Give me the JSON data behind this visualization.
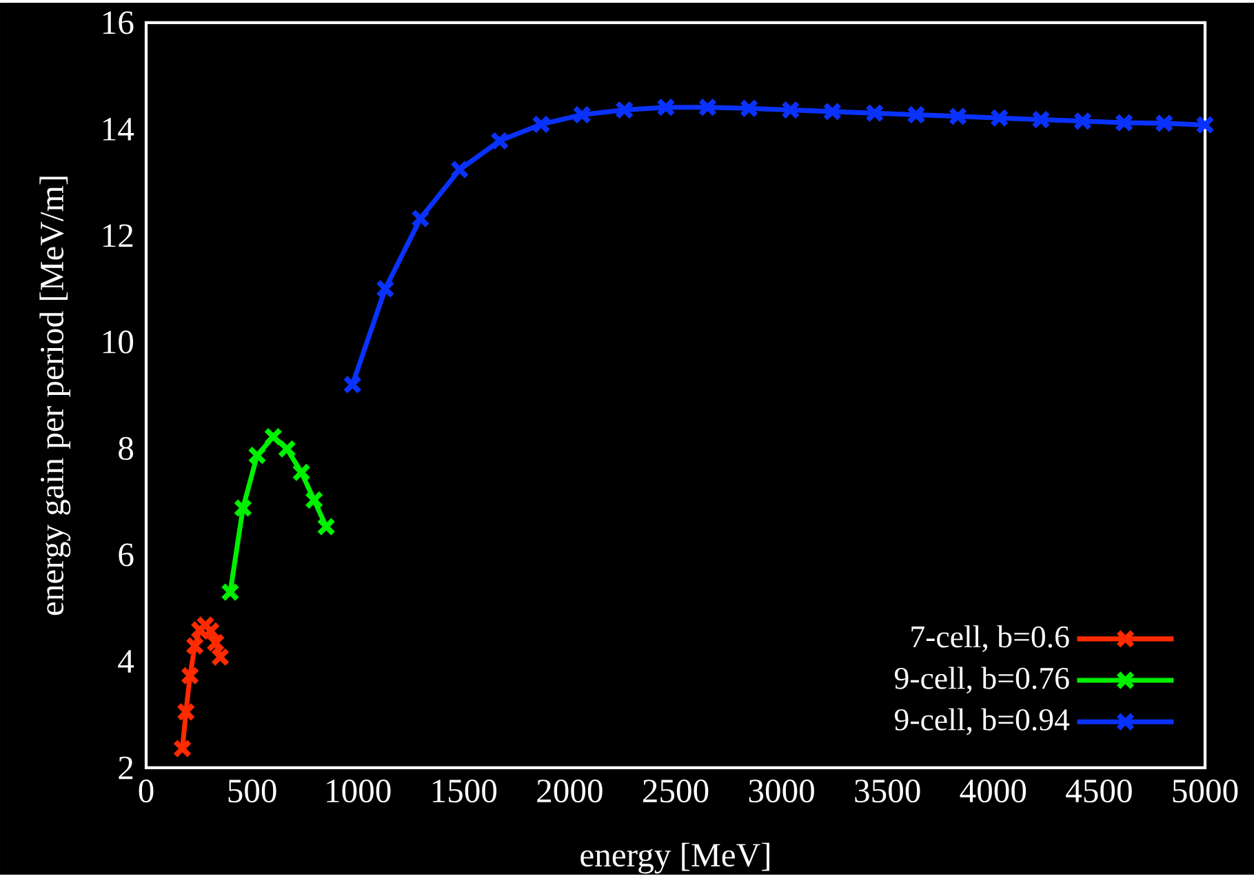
{
  "chart_data": {
    "type": "line",
    "xlabel": "energy [MeV]",
    "ylabel": "energy gain per period [MeV/m]",
    "xlim": [
      0,
      5000
    ],
    "ylim": [
      2,
      16
    ],
    "xticks": [
      0,
      500,
      1000,
      1500,
      2000,
      2500,
      3000,
      3500,
      4000,
      4500,
      5000
    ],
    "yticks": [
      2,
      4,
      6,
      8,
      10,
      12,
      14,
      16
    ],
    "legend": "bottom right",
    "line_style": "solid",
    "series": [
      {
        "name": "7-cell, b=0.6",
        "color": "#ff2a00",
        "marker": "cross",
        "x": [
          171,
          188,
          207,
          230,
          253,
          280,
          305,
          328,
          350
        ],
        "values": [
          2.36,
          3.05,
          3.73,
          4.29,
          4.59,
          4.68,
          4.57,
          4.35,
          4.08
        ]
      },
      {
        "name": "9-cell, b=0.76",
        "color": "#00f000",
        "marker": "cross",
        "x": [
          397,
          457,
          524,
          600,
          665,
          733,
          793,
          850
        ],
        "values": [
          5.3,
          6.88,
          7.87,
          8.22,
          7.99,
          7.55,
          7.03,
          6.53
        ]
      },
      {
        "name": "9-cell, b=0.94",
        "color": "#0a32ff",
        "marker": "cross",
        "x": [
          974,
          1129,
          1295,
          1480,
          1669,
          1865,
          2058,
          2258,
          2454,
          2651,
          2847,
          3043,
          3240,
          3440,
          3636,
          3833,
          4029,
          4225,
          4422,
          4618,
          4807,
          5000
        ],
        "values": [
          9.2,
          11.0,
          12.32,
          13.24,
          13.78,
          14.09,
          14.27,
          14.36,
          14.41,
          14.41,
          14.39,
          14.36,
          14.33,
          14.3,
          14.27,
          14.24,
          14.21,
          14.18,
          14.15,
          14.12,
          14.11,
          14.08
        ]
      }
    ]
  }
}
